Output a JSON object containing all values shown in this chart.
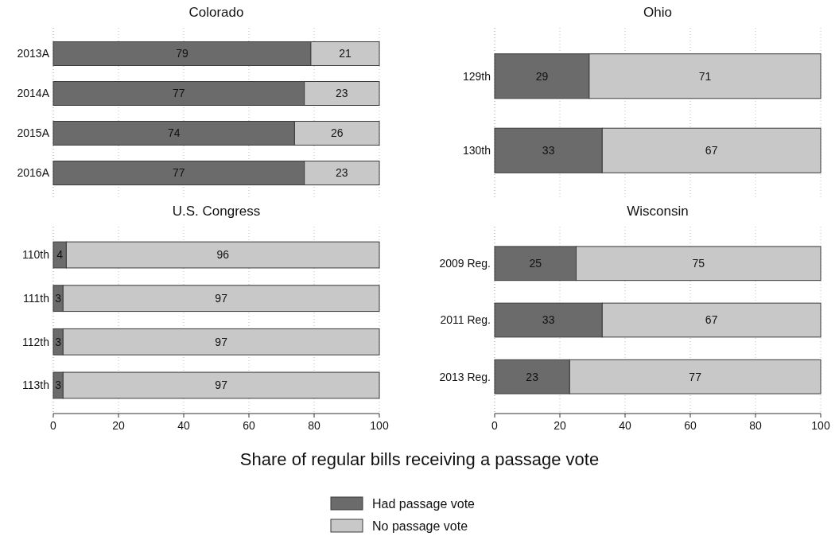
{
  "chart_data": [
    {
      "type": "bar",
      "orientation": "horizontal",
      "stacked": true,
      "title": "Colorado",
      "categories": [
        "2013A",
        "2014A",
        "2015A",
        "2016A"
      ],
      "series": [
        {
          "color": "#6b6b6b",
          "values": [
            79,
            77,
            74,
            77
          ]
        },
        {
          "color": "#c8c8c8",
          "values": [
            21,
            23,
            26,
            23
          ]
        }
      ],
      "xlim": [
        0,
        100
      ],
      "xticks": [
        0,
        20,
        40,
        60,
        80,
        100
      ],
      "grid": "x",
      "data_labels": true,
      "tick_labels": "y"
    },
    {
      "type": "bar",
      "orientation": "horizontal",
      "stacked": true,
      "title": "Ohio",
      "categories": [
        "129th",
        "130th"
      ],
      "series": [
        {
          "color": "#6b6b6b",
          "values": [
            29,
            33
          ]
        },
        {
          "color": "#c8c8c8",
          "values": [
            71,
            67
          ]
        }
      ],
      "xlim": [
        0,
        100
      ],
      "xticks": [
        0,
        20,
        40,
        60,
        80,
        100
      ],
      "grid": "x",
      "data_labels": true,
      "tick_labels": "y"
    },
    {
      "type": "bar",
      "orientation": "horizontal",
      "stacked": true,
      "title": "U.S. Congress",
      "xlabel": "Share of regular bills receiving a passage vote",
      "categories": [
        "110th",
        "111th",
        "112th",
        "113th"
      ],
      "series": [
        {
          "color": "#6b6b6b",
          "values": [
            4,
            3,
            3,
            3
          ]
        },
        {
          "color": "#c8c8c8",
          "values": [
            96,
            97,
            97,
            97
          ]
        }
      ],
      "xlim": [
        0,
        100
      ],
      "xticks": [
        0,
        20,
        40,
        60,
        80,
        100
      ],
      "grid": "x",
      "data_labels": true
    },
    {
      "type": "bar",
      "orientation": "horizontal",
      "stacked": true,
      "title": "Wisconsin",
      "categories": [
        "2009 Reg.",
        "2011 Reg.",
        "2013 Reg."
      ],
      "series": [
        {
          "name": "Had passage vote",
          "color": "#6b6b6b",
          "values": [
            25,
            33,
            23
          ]
        },
        {
          "name": "No passage vote",
          "color": "#c8c8c8",
          "values": [
            75,
            67,
            77
          ]
        }
      ],
      "xlim": [
        0,
        100
      ],
      "xticks": [
        0,
        20,
        40,
        60,
        80,
        100
      ],
      "grid": "x",
      "data_labels": true,
      "legend": "bottom"
    }
  ]
}
